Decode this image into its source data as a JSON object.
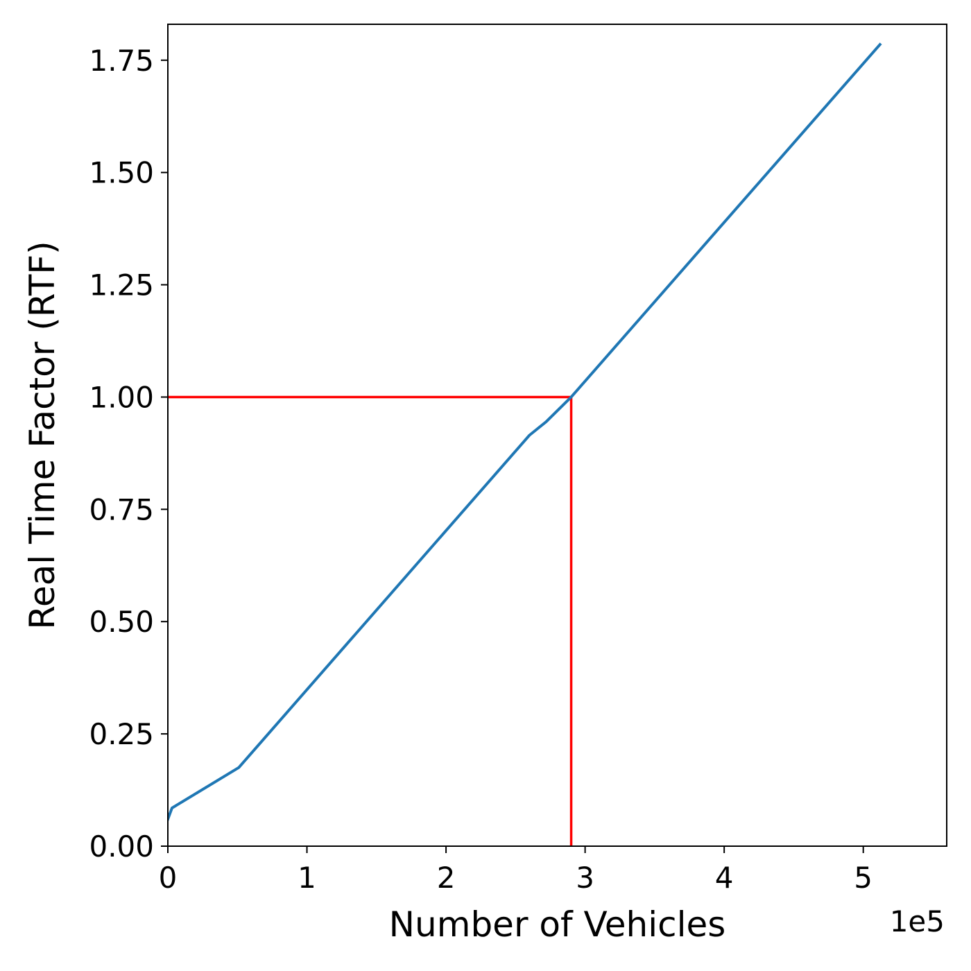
{
  "chart_data": {
    "type": "line",
    "title": "",
    "xlabel": "Number of Vehicles",
    "ylabel": "Real Time Factor (RTF)",
    "x_offset_label": "1e5",
    "x_scale": 100000,
    "xlim": [
      0,
      560000
    ],
    "ylim": [
      0,
      1.83
    ],
    "xticks": [
      0,
      100000,
      200000,
      300000,
      400000,
      500000
    ],
    "xtick_labels": [
      "0",
      "1",
      "2",
      "3",
      "4",
      "5"
    ],
    "yticks": [
      0,
      0.25,
      0.5,
      0.75,
      1.0,
      1.25,
      1.5,
      1.75
    ],
    "ytick_labels": [
      "0.00",
      "0.25",
      "0.50",
      "0.75",
      "1.00",
      "1.25",
      "1.50",
      "1.75"
    ],
    "grid": false,
    "series": [
      {
        "color": "#1f77b4",
        "x": [
          0,
          3000,
          51000,
          260000,
          272000,
          290000,
          512000
        ],
        "y": [
          0.06,
          0.085,
          0.175,
          0.915,
          0.945,
          1.0,
          1.785
        ]
      }
    ],
    "reference_lines": [
      {
        "color": "#ff0000",
        "x": [
          0,
          290000,
          290000
        ],
        "y": [
          1.0,
          1.0,
          0.0
        ]
      }
    ]
  }
}
